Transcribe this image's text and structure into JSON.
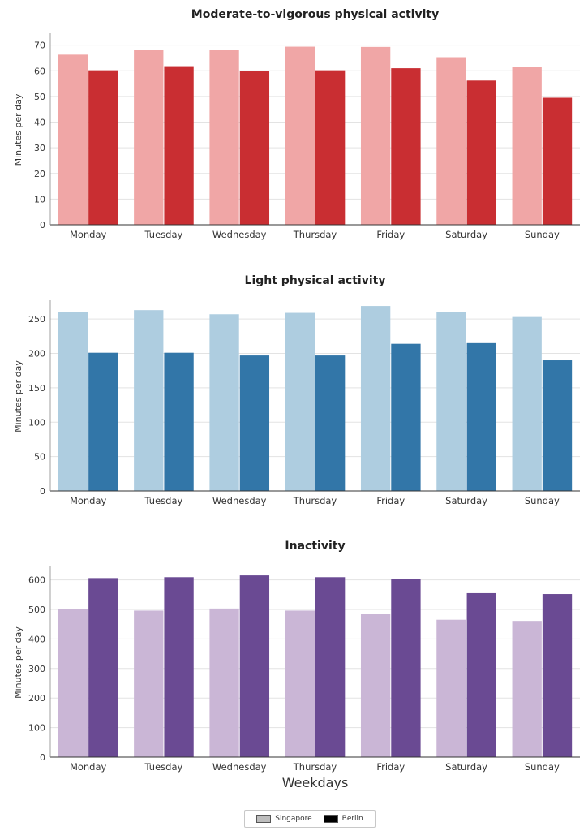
{
  "figure": {
    "xlabel": "Weekdays",
    "legend": [
      {
        "name": "Singapore",
        "color": "#bdbdbd"
      },
      {
        "name": "Berlin",
        "color": "#000000"
      }
    ]
  },
  "chart_data": [
    {
      "type": "bar",
      "title": "Moderate-to-vigorous physical activity",
      "ylabel": "Minutes per day",
      "xlabel": "",
      "ylim": [
        0,
        74
      ],
      "yticks": [
        0,
        10,
        20,
        30,
        40,
        50,
        60,
        70
      ],
      "categories": [
        "Monday",
        "Tuesday",
        "Wednesday",
        "Thursday",
        "Friday",
        "Saturday",
        "Sunday"
      ],
      "series": [
        {
          "name": "Singapore",
          "color": "#f0a6a6",
          "values": [
            66.3,
            68.0,
            68.3,
            69.4,
            69.3,
            65.3,
            61.6
          ]
        },
        {
          "name": "Berlin",
          "color": "#c92e32",
          "values": [
            60.2,
            61.8,
            60.0,
            60.2,
            61.0,
            56.2,
            49.5
          ]
        }
      ]
    },
    {
      "type": "bar",
      "title": "Light physical activity",
      "ylabel": "Minutes per day",
      "xlabel": "",
      "ylim": [
        0,
        275
      ],
      "yticks": [
        0,
        50,
        100,
        150,
        200,
        250
      ],
      "categories": [
        "Monday",
        "Tuesday",
        "Wednesday",
        "Thursday",
        "Friday",
        "Saturday",
        "Sunday"
      ],
      "series": [
        {
          "name": "Singapore",
          "color": "#aecde0",
          "values": [
            260,
            263,
            257,
            259,
            269,
            260,
            253
          ]
        },
        {
          "name": "Berlin",
          "color": "#3276a8",
          "values": [
            201,
            201,
            197,
            197,
            214,
            215,
            190
          ]
        }
      ]
    },
    {
      "type": "bar",
      "title": "Inactivity",
      "ylabel": "Minutes per day",
      "xlabel": "Weekdays",
      "ylim": [
        0,
        640
      ],
      "yticks": [
        0,
        100,
        200,
        300,
        400,
        500,
        600
      ],
      "categories": [
        "Monday",
        "Tuesday",
        "Wednesday",
        "Thursday",
        "Friday",
        "Saturday",
        "Sunday"
      ],
      "series": [
        {
          "name": "Singapore",
          "color": "#cab6d6",
          "values": [
            500,
            496,
            503,
            496,
            486,
            465,
            461
          ]
        },
        {
          "name": "Berlin",
          "color": "#6a4a93",
          "values": [
            606,
            609,
            615,
            609,
            604,
            555,
            552
          ]
        }
      ]
    }
  ]
}
